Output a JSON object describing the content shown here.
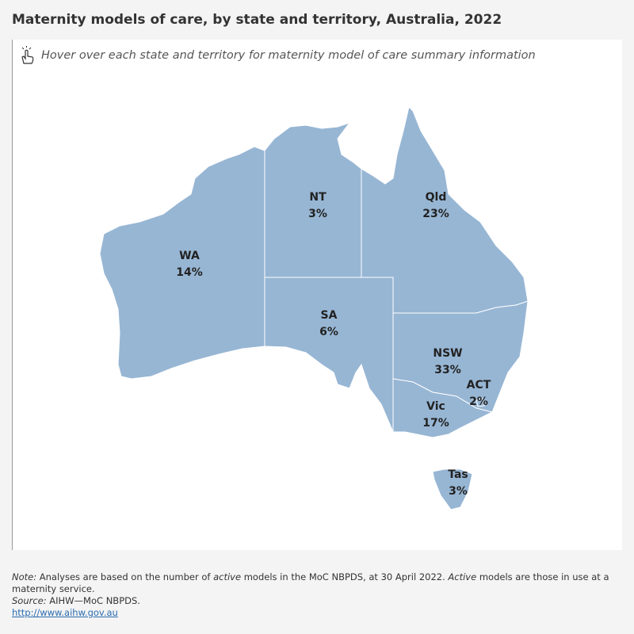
{
  "header": {
    "title": "Maternity models of care, by state and territory, Australia, 2022",
    "instruction": "Hover over each state and territory for maternity model of care summary information"
  },
  "regions": [
    {
      "name": "WA",
      "label": "14%"
    },
    {
      "name": "NT",
      "label": "3%"
    },
    {
      "name": "Qld",
      "label": "23%"
    },
    {
      "name": "SA",
      "label": "6%"
    },
    {
      "name": "NSW",
      "label": "33%"
    },
    {
      "name": "ACT",
      "label": "2%"
    },
    {
      "name": "Vic",
      "label": "17%"
    },
    {
      "name": "Tas",
      "label": "3%"
    }
  ],
  "footer": {
    "note": [
      "Note:",
      " Analyses are based on the number of ",
      "active",
      " models in the MoC NBPDS, at 30 April 2022. ",
      "Active",
      " models are those in use at a maternity service."
    ],
    "source": [
      "Source:",
      " AIHW—MoC NBPDS."
    ],
    "link": "http://www.aihw.gov.au"
  }
}
